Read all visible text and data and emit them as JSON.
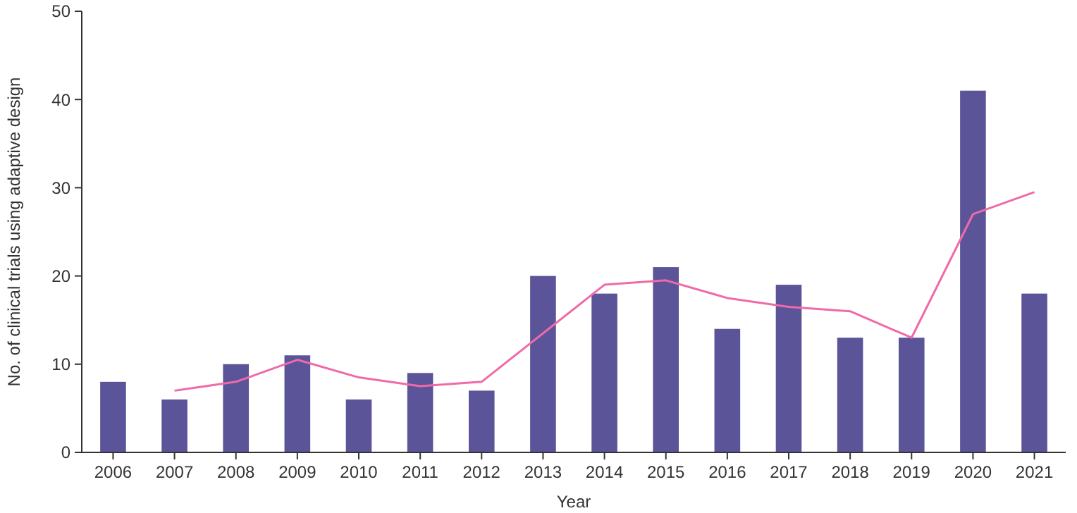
{
  "chart_data": {
    "type": "bar",
    "xlabel": "Year",
    "ylabel": "No. of clinical trials using adaptive design",
    "categories": [
      "2006",
      "2007",
      "2008",
      "2009",
      "2010",
      "2011",
      "2012",
      "2013",
      "2014",
      "2015",
      "2016",
      "2017",
      "2018",
      "2019",
      "2020",
      "2021"
    ],
    "series": [
      {
        "color": "#5b5499",
        "values": [
          8,
          6,
          10,
          11,
          6,
          9,
          7,
          20,
          18,
          21,
          14,
          19,
          13,
          13,
          41,
          18
        ]
      },
      {
        "type": "line",
        "color": "#f06aa8",
        "values": [
          null,
          7,
          8,
          10.5,
          8.5,
          7.5,
          8,
          13.5,
          19,
          19.5,
          17.5,
          16.5,
          16,
          13,
          27,
          29.5
        ]
      }
    ],
    "ylim": [
      0,
      50
    ],
    "yticks": [
      0,
      10,
      20,
      30,
      40,
      50
    ],
    "grid": false,
    "marker": "none",
    "line_style": "solid"
  }
}
